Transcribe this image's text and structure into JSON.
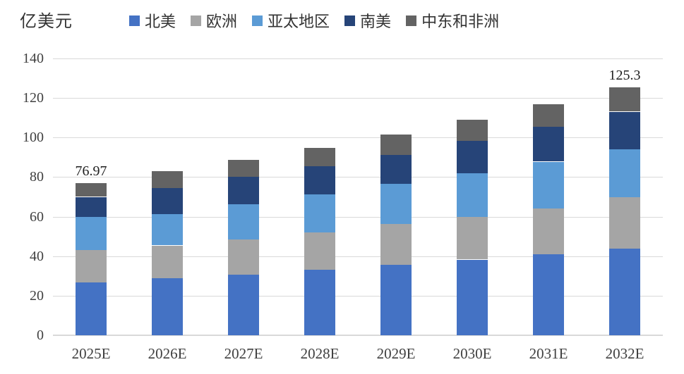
{
  "chart_data": {
    "type": "bar",
    "stacked": true,
    "unit_label": "亿美元",
    "categories": [
      "2025E",
      "2026E",
      "2027E",
      "2028E",
      "2029E",
      "2030E",
      "2031E",
      "2032E"
    ],
    "series": [
      {
        "name": "北美",
        "color": "#4472C4",
        "values": [
          26.7,
          29.0,
          30.8,
          33.1,
          35.5,
          38.3,
          41.0,
          43.9
        ]
      },
      {
        "name": "欧洲",
        "color": "#A5A5A5",
        "values": [
          16.4,
          16.4,
          17.8,
          18.8,
          20.9,
          21.7,
          23.0,
          25.9
        ]
      },
      {
        "name": "亚太地区",
        "color": "#5B9BD5",
        "values": [
          16.9,
          16.0,
          17.6,
          19.2,
          20.2,
          21.8,
          23.8,
          24.3
        ]
      },
      {
        "name": "南美",
        "color": "#264478",
        "values": [
          10.0,
          13.0,
          14.0,
          14.3,
          14.7,
          16.4,
          17.6,
          19.0
        ]
      },
      {
        "name": "中东和非洲",
        "color": "#636363",
        "values": [
          6.97,
          8.7,
          8.6,
          9.5,
          10.4,
          10.7,
          11.6,
          12.2
        ]
      }
    ],
    "annotations": [
      {
        "category_index": 0,
        "text": "76.97"
      },
      {
        "category_index": 7,
        "text": "125.3"
      }
    ],
    "ylim": [
      0,
      140
    ],
    "ytick_step": 20,
    "yticks": [
      "0",
      "20",
      "40",
      "60",
      "80",
      "100",
      "120",
      "140"
    ],
    "grid": true,
    "grid_color": "#D9D9D9",
    "axis_text_color": "#404040",
    "legend_position": "top"
  }
}
